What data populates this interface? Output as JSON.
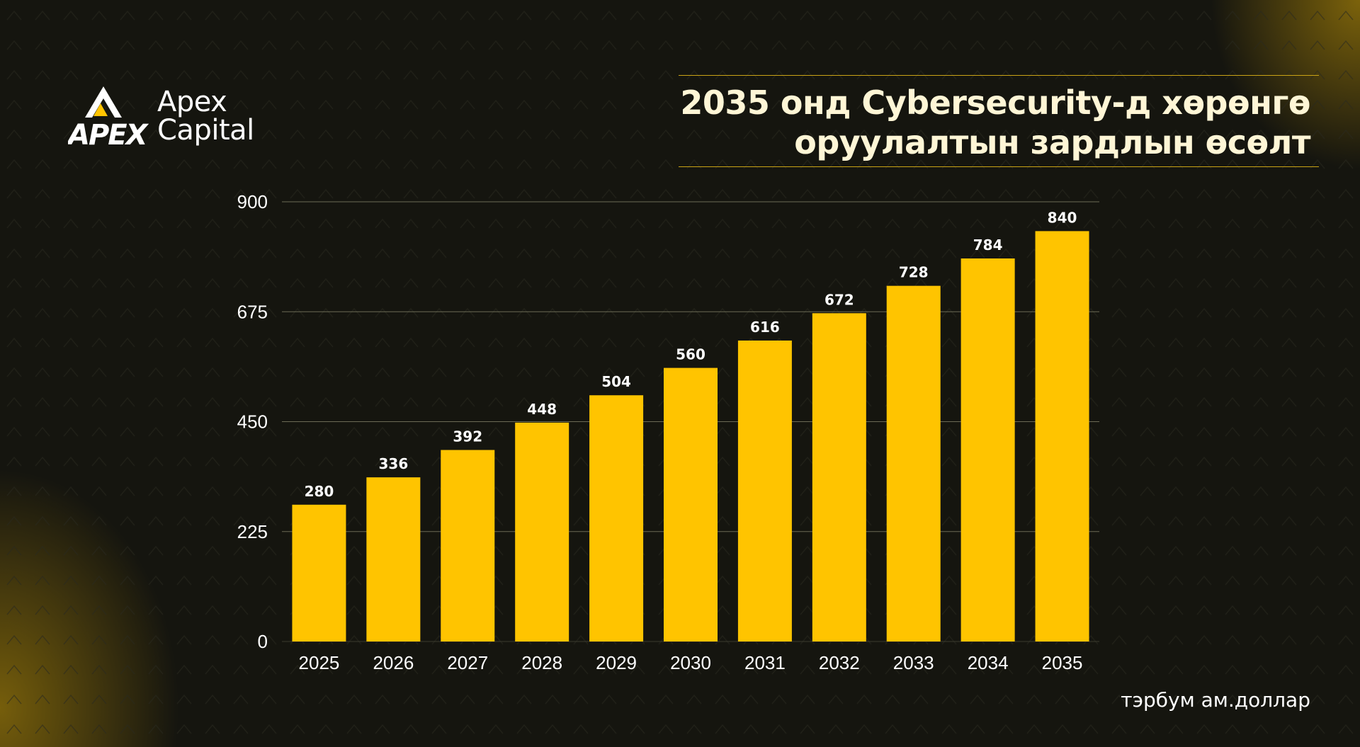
{
  "brand": {
    "mark_text": "APEX",
    "name_line1": "Apex",
    "name_line2": "Capital",
    "accent_color": "#ffc400"
  },
  "title": {
    "line1": "2035 онд Cybersecurity-д хөрөнгө",
    "line2": "оруулалтын зардлын өсөлт"
  },
  "unit_label": "тэрбум ам.доллар",
  "chart_data": {
    "type": "bar",
    "title": "2035 онд Cybersecurity-д хөрөнгө оруулалтын зардлын өсөлт",
    "categories": [
      "2025",
      "2026",
      "2027",
      "2028",
      "2029",
      "2030",
      "2031",
      "2032",
      "2033",
      "2034",
      "2035"
    ],
    "values": [
      280,
      336,
      392,
      448,
      504,
      560,
      616,
      672,
      728,
      784,
      840
    ],
    "ylim": [
      0,
      900
    ],
    "yticks": [
      0,
      225,
      450,
      675,
      900
    ],
    "ylabel": "тэрбум ам.доллар",
    "xlabel": "",
    "grid": true,
    "legend": "none",
    "bar_color": "#ffc400",
    "data_labels": true
  }
}
